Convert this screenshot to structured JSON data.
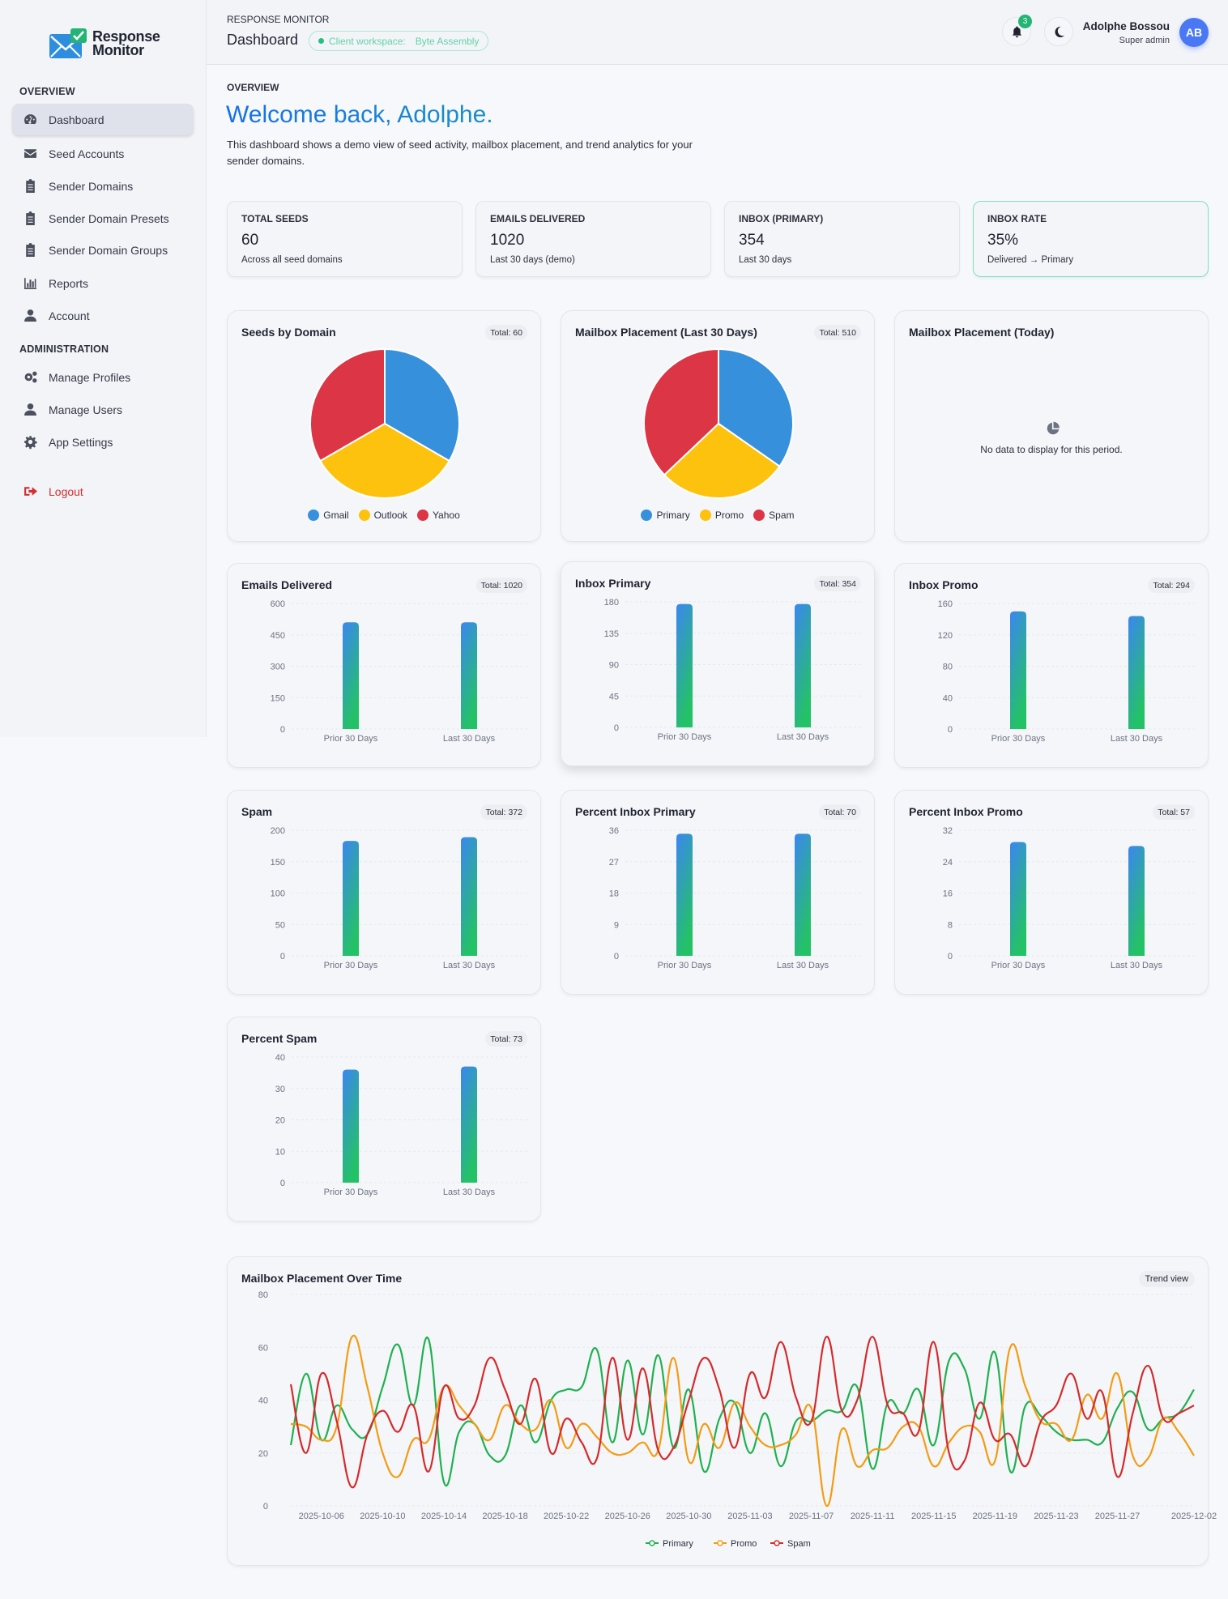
{
  "sidebar": {
    "logo_line1": "Response",
    "logo_line2": "Monitor",
    "section_overview": "OVERVIEW",
    "section_admin": "ADMINISTRATION",
    "items": [
      {
        "label": "Dashboard",
        "icon": "dashboard-gauge-icon",
        "active": true
      },
      {
        "label": "Seed Accounts",
        "icon": "envelope-icon"
      },
      {
        "label": "Sender Domains",
        "icon": "clipboard-list-icon"
      },
      {
        "label": "Sender Domain Presets",
        "icon": "clipboard-list-icon"
      },
      {
        "label": "Sender Domain Groups",
        "icon": "clipboard-list-icon"
      },
      {
        "label": "Reports",
        "icon": "bar-chart-icon"
      },
      {
        "label": "Account",
        "icon": "user-icon"
      }
    ],
    "admin_items": [
      {
        "label": "Manage Profiles",
        "icon": "cogs-icon"
      },
      {
        "label": "Manage Users",
        "icon": "user-icon"
      },
      {
        "label": "App Settings",
        "icon": "gear-icon"
      }
    ],
    "logout": "Logout"
  },
  "header": {
    "app_name": "RESPONSE MONITOR",
    "title": "Dashboard",
    "workspace_label": "Client workspace:",
    "workspace_name": "Byte Assembly",
    "notifications": "3",
    "user_name": "Adolphe Bossou",
    "user_role": "Super admin",
    "avatar_initials": "AB"
  },
  "intro": {
    "section": "OVERVIEW",
    "welcome": "Welcome back, Adolphe.",
    "description": "This dashboard shows a demo view of seed activity, mailbox placement, and trend analytics for your sender domains."
  },
  "stats": [
    {
      "label": "TOTAL SEEDS",
      "value": "60",
      "sub": "Across all seed domains"
    },
    {
      "label": "EMAILS DELIVERED",
      "value": "1020",
      "sub": "Last 30 days (demo)"
    },
    {
      "label": "INBOX (PRIMARY)",
      "value": "354",
      "sub": "Last 30 days"
    },
    {
      "label": "INBOX RATE",
      "value": "35%",
      "sub": "Delivered → Primary"
    }
  ],
  "colors": {
    "blue": "#3690dc",
    "yellow": "#fdc20e",
    "red": "#dc3545",
    "bar_top": "#3b86f0",
    "bar_bottom": "#24c266",
    "line_primary": "#1fb14f",
    "line_promo": "#f39c12",
    "line_spam": "#d42b2b"
  },
  "today_card": {
    "title": "Mailbox Placement (Today)",
    "message": "No data to display for this period.",
    "icon": "pie-chart-icon"
  },
  "chart_data": [
    {
      "type": "pie",
      "title": "Seeds by Domain",
      "total_label": "Total: 60",
      "categories": [
        "Gmail",
        "Outlook",
        "Yahoo"
      ],
      "values": [
        20,
        20,
        20
      ],
      "colors": [
        "#3690dc",
        "#fdc20e",
        "#dc3545"
      ],
      "legend": "bottom"
    },
    {
      "type": "pie",
      "title": "Mailbox Placement (Last 30 Days)",
      "total_label": "Total: 510",
      "categories": [
        "Primary",
        "Promo",
        "Spam"
      ],
      "values": [
        177,
        144,
        189
      ],
      "colors": [
        "#3690dc",
        "#fdc20e",
        "#dc3545"
      ],
      "legend": "bottom"
    },
    {
      "type": "bar",
      "title": "Emails Delivered",
      "total_label": "Total: 1020",
      "categories": [
        "Prior 30 Days",
        "Last 30 Days"
      ],
      "values": [
        510,
        510
      ],
      "ylim": [
        0,
        600
      ],
      "yticks": [
        0,
        150,
        300,
        450,
        600
      ],
      "grid": true
    },
    {
      "type": "bar",
      "title": "Inbox Primary",
      "total_label": "Total: 354",
      "categories": [
        "Prior 30 Days",
        "Last 30 Days"
      ],
      "values": [
        177,
        177
      ],
      "ylim": [
        0,
        180
      ],
      "yticks": [
        0,
        45,
        90,
        135,
        180
      ],
      "grid": true
    },
    {
      "type": "bar",
      "title": "Inbox Promo",
      "total_label": "Total: 294",
      "categories": [
        "Prior 30 Days",
        "Last 30 Days"
      ],
      "values": [
        150,
        144
      ],
      "ylim": [
        0,
        160
      ],
      "yticks": [
        0,
        40,
        80,
        120,
        160
      ],
      "grid": true
    },
    {
      "type": "bar",
      "title": "Spam",
      "total_label": "Total: 372",
      "categories": [
        "Prior 30 Days",
        "Last 30 Days"
      ],
      "values": [
        183,
        189
      ],
      "ylim": [
        0,
        200
      ],
      "yticks": [
        0,
        50,
        100,
        150,
        200
      ],
      "grid": true
    },
    {
      "type": "bar",
      "title": "Percent Inbox Primary",
      "total_label": "Total: 70",
      "categories": [
        "Prior 30 Days",
        "Last 30 Days"
      ],
      "values": [
        35,
        35
      ],
      "ylim": [
        0,
        36
      ],
      "yticks": [
        0,
        9,
        18,
        27,
        36
      ],
      "grid": true
    },
    {
      "type": "bar",
      "title": "Percent Inbox Promo",
      "total_label": "Total: 57",
      "categories": [
        "Prior 30 Days",
        "Last 30 Days"
      ],
      "values": [
        29,
        28
      ],
      "ylim": [
        0,
        32
      ],
      "yticks": [
        0,
        8,
        16,
        24,
        32
      ],
      "grid": true
    },
    {
      "type": "bar",
      "title": "Percent Spam",
      "total_label": "Total: 73",
      "categories": [
        "Prior 30 Days",
        "Last 30 Days"
      ],
      "values": [
        36,
        37
      ],
      "ylim": [
        0,
        40
      ],
      "yticks": [
        0,
        10,
        20,
        30,
        40
      ],
      "grid": true
    },
    {
      "type": "line",
      "title": "Mailbox Placement Over Time",
      "badge": "Trend view",
      "legend": "bottom",
      "grid": true,
      "ylim": [
        0,
        80
      ],
      "yticks": [
        0,
        20,
        40,
        60,
        80
      ],
      "x_tick_labels": [
        "2025-10-06",
        "2025-10-10",
        "2025-10-14",
        "2025-10-18",
        "2025-10-22",
        "2025-10-26",
        "2025-10-30",
        "2025-11-03",
        "2025-11-07",
        "2025-11-11",
        "2025-11-15",
        "2025-11-19",
        "2025-11-23",
        "2025-11-27",
        "2025-12-02"
      ],
      "x": [
        "2025-10-04",
        "2025-10-05",
        "2025-10-06",
        "2025-10-07",
        "2025-10-08",
        "2025-10-09",
        "2025-10-10",
        "2025-10-11",
        "2025-10-12",
        "2025-10-13",
        "2025-10-14",
        "2025-10-15",
        "2025-10-16",
        "2025-10-17",
        "2025-10-18",
        "2025-10-19",
        "2025-10-20",
        "2025-10-21",
        "2025-10-22",
        "2025-10-23",
        "2025-10-24",
        "2025-10-25",
        "2025-10-26",
        "2025-10-27",
        "2025-10-28",
        "2025-10-29",
        "2025-10-30",
        "2025-10-31",
        "2025-11-01",
        "2025-11-02",
        "2025-11-03",
        "2025-11-04",
        "2025-11-05",
        "2025-11-06",
        "2025-11-07",
        "2025-11-08",
        "2025-11-09",
        "2025-11-10",
        "2025-11-11",
        "2025-11-12",
        "2025-11-13",
        "2025-11-14",
        "2025-11-15",
        "2025-11-16",
        "2025-11-17",
        "2025-11-18",
        "2025-11-19",
        "2025-11-20",
        "2025-11-21",
        "2025-11-22",
        "2025-11-23",
        "2025-11-24",
        "2025-11-25",
        "2025-11-26",
        "2025-11-27",
        "2025-11-28",
        "2025-11-29",
        "2025-11-30",
        "2025-12-01",
        "2025-12-02"
      ],
      "series": [
        {
          "name": "Primary",
          "color": "#1fb14f",
          "values": [
            23,
            50,
            25,
            38,
            29,
            27,
            45,
            61,
            38,
            63,
            9,
            28,
            31,
            19,
            19,
            38,
            24,
            40,
            44,
            45,
            59,
            24,
            55,
            27,
            57,
            22,
            44,
            13,
            33,
            39,
            20,
            35,
            15,
            32,
            32,
            36,
            36,
            45,
            14,
            39,
            35,
            44,
            23,
            55,
            52,
            33,
            58,
            13,
            38,
            34,
            28,
            25,
            25,
            24,
            37,
            43,
            29,
            33,
            35,
            44
          ]
        },
        {
          "name": "Promo",
          "color": "#f39c12",
          "values": [
            31,
            30,
            25,
            30,
            64,
            45,
            20,
            11,
            25,
            25,
            45,
            38,
            31,
            25,
            38,
            31,
            29,
            40,
            22,
            31,
            26,
            20,
            20,
            24,
            21,
            56,
            17,
            31,
            22,
            39,
            30,
            23,
            23,
            27,
            37,
            0,
            29,
            15,
            21,
            22,
            30,
            30,
            15,
            24,
            30,
            28,
            17,
            60,
            45,
            32,
            31,
            25,
            42,
            33,
            50,
            19,
            18,
            33,
            28,
            19
          ]
        },
        {
          "name": "Spam",
          "color": "#d42b2b",
          "values": [
            46,
            20,
            50,
            32,
            7,
            27,
            36,
            28,
            38,
            13,
            45,
            33,
            38,
            56,
            44,
            31,
            48,
            20,
            33,
            24,
            18,
            56,
            25,
            52,
            21,
            22,
            40,
            56,
            44,
            22,
            50,
            41,
            62,
            41,
            32,
            64,
            36,
            40,
            64,
            38,
            35,
            28,
            62,
            20,
            17,
            39,
            25,
            27,
            15,
            32,
            38,
            50,
            33,
            43,
            11,
            35,
            53,
            33,
            35,
            38
          ]
        }
      ]
    }
  ]
}
